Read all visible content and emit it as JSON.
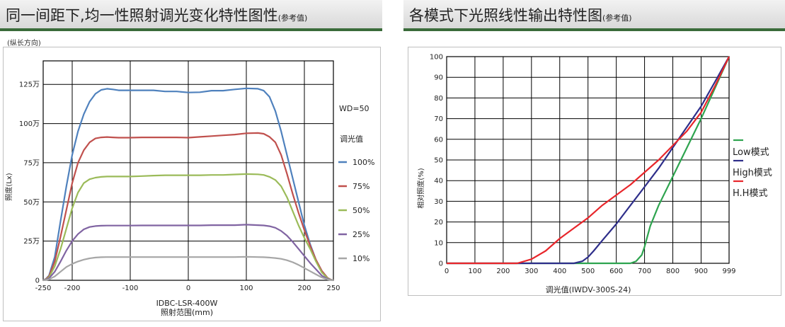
{
  "left_header": {
    "title": "同一间距下,均一性照射调光变化特性图性",
    "title_small": "(参考值)"
  },
  "right_header": {
    "title": "各模式下光照线性输出特性图",
    "title_small": "(参考值)"
  },
  "left_note": "(纵长方向)",
  "colors": {
    "header_rule": "#3a6b3a",
    "s100": "#4f81bd",
    "s75": "#c0504d",
    "s50": "#9bbb59",
    "s25": "#8064a2",
    "s10": "#a6a6a6",
    "low": "#2ea44f",
    "high": "#2e2e8a",
    "hh": "#e8262b"
  },
  "chart_data": [
    {
      "type": "line",
      "xlabel": "IDBC-LSR-400W",
      "xlabel2": "照射范围(mm)",
      "ylabel": "照度(Lx)",
      "xlim": [
        -250,
        250
      ],
      "ylim": [
        0,
        1400000
      ],
      "grid": true,
      "x_ticks": [
        {
          "v": -250,
          "label": "-250"
        },
        {
          "v": -200,
          "label": "-200"
        },
        {
          "v": -100,
          "label": "-100"
        },
        {
          "v": 0,
          "label": "0"
        },
        {
          "v": 100,
          "label": "100"
        },
        {
          "v": 200,
          "label": "200"
        },
        {
          "v": 250,
          "label": "250"
        }
      ],
      "y_ticks": [
        {
          "v": 0,
          "label": "0"
        },
        {
          "v": 250000,
          "label": "25万"
        },
        {
          "v": 500000,
          "label": "50万"
        },
        {
          "v": 750000,
          "label": "75万"
        },
        {
          "v": 1000000,
          "label": "100万"
        },
        {
          "v": 1250000,
          "label": "125万"
        }
      ],
      "annotation": "WD=50",
      "legend_title": "调光值",
      "legend_position": "right",
      "x": [
        -250,
        -245,
        -240,
        -230,
        -220,
        -210,
        -200,
        -190,
        -180,
        -170,
        -160,
        -150,
        -140,
        -130,
        -120,
        -100,
        -80,
        -60,
        -40,
        -20,
        0,
        20,
        40,
        60,
        80,
        100,
        120,
        130,
        140,
        150,
        160,
        170,
        180,
        190,
        200,
        210,
        220,
        230,
        240,
        245,
        250
      ],
      "series": [
        {
          "name": "100%",
          "color_key": "s100",
          "values": [
            0,
            10000,
            30000,
            150000,
            380000,
            600000,
            800000,
            950000,
            1060000,
            1140000,
            1190000,
            1215000,
            1222000,
            1218000,
            1212000,
            1212000,
            1212000,
            1212000,
            1205000,
            1205000,
            1198000,
            1200000,
            1210000,
            1210000,
            1218000,
            1225000,
            1222000,
            1210000,
            1170000,
            1080000,
            950000,
            800000,
            650000,
            500000,
            350000,
            230000,
            130000,
            60000,
            15000,
            5000,
            0
          ]
        },
        {
          "name": "75%",
          "color_key": "s75",
          "values": [
            0,
            8000,
            25000,
            120000,
            280000,
            450000,
            620000,
            750000,
            830000,
            880000,
            905000,
            912000,
            914000,
            912000,
            910000,
            910000,
            912000,
            912000,
            912000,
            912000,
            910000,
            915000,
            920000,
            925000,
            930000,
            938000,
            940000,
            935000,
            915000,
            880000,
            800000,
            680000,
            550000,
            430000,
            320000,
            220000,
            130000,
            60000,
            15000,
            5000,
            0
          ]
        },
        {
          "name": "50%",
          "color_key": "s50",
          "values": [
            0,
            6000,
            18000,
            90000,
            200000,
            330000,
            460000,
            560000,
            620000,
            645000,
            655000,
            660000,
            662000,
            662000,
            662000,
            662000,
            665000,
            668000,
            670000,
            670000,
            670000,
            670000,
            672000,
            672000,
            675000,
            678000,
            676000,
            672000,
            660000,
            640000,
            600000,
            530000,
            440000,
            350000,
            270000,
            200000,
            120000,
            50000,
            12000,
            4000,
            0
          ]
        },
        {
          "name": "25%",
          "color_key": "s25",
          "values": [
            0,
            4000,
            12000,
            55000,
            120000,
            190000,
            250000,
            295000,
            325000,
            340000,
            346000,
            348000,
            349000,
            349000,
            349000,
            349000,
            350000,
            350000,
            350000,
            350000,
            350000,
            350000,
            352000,
            352000,
            352000,
            355000,
            352000,
            350000,
            345000,
            335000,
            315000,
            285000,
            245000,
            200000,
            155000,
            110000,
            70000,
            30000,
            8000,
            3000,
            0
          ]
        },
        {
          "name": "10%",
          "color_key": "s10",
          "values": [
            0,
            2000,
            6000,
            25000,
            55000,
            85000,
            105000,
            120000,
            132000,
            140000,
            145000,
            147000,
            148000,
            148000,
            148000,
            148000,
            148000,
            148000,
            148000,
            148000,
            148000,
            148000,
            148000,
            148000,
            148000,
            150000,
            148000,
            147000,
            145000,
            142000,
            137000,
            128000,
            115000,
            98000,
            78000,
            58000,
            38000,
            18000,
            5000,
            2000,
            0
          ]
        }
      ]
    },
    {
      "type": "line",
      "xlabel": "调光值(IWDV-300S-24)",
      "ylabel": "相对照度(%)",
      "xlim": [
        0,
        999
      ],
      "ylim": [
        0,
        100
      ],
      "grid": true,
      "x_ticks": [
        {
          "v": 0,
          "label": "0"
        },
        {
          "v": 100,
          "label": "100"
        },
        {
          "v": 200,
          "label": "200"
        },
        {
          "v": 300,
          "label": "300"
        },
        {
          "v": 400,
          "label": "400"
        },
        {
          "v": 500,
          "label": "500"
        },
        {
          "v": 600,
          "label": "600"
        },
        {
          "v": 700,
          "label": "700"
        },
        {
          "v": 800,
          "label": "800"
        },
        {
          "v": 900,
          "label": "900"
        },
        {
          "v": 999,
          "label": "999"
        }
      ],
      "y_ticks": [
        {
          "v": 0,
          "label": "0"
        },
        {
          "v": 10,
          "label": "10"
        },
        {
          "v": 20,
          "label": "20"
        },
        {
          "v": 30,
          "label": "30"
        },
        {
          "v": 40,
          "label": "40"
        },
        {
          "v": 50,
          "label": "50"
        },
        {
          "v": 60,
          "label": "60"
        },
        {
          "v": 70,
          "label": "70"
        },
        {
          "v": 80,
          "label": "80"
        },
        {
          "v": 90,
          "label": "90"
        },
        {
          "v": 100,
          "label": "100"
        }
      ],
      "legend_position": "right",
      "series": [
        {
          "name": "Low模式",
          "color_key": "low",
          "x": [
            0,
            650,
            670,
            690,
            700,
            720,
            750,
            800,
            850,
            900,
            950,
            999
          ],
          "values": [
            0,
            0,
            1,
            4,
            8,
            18,
            28,
            42,
            56,
            70,
            85,
            100
          ]
        },
        {
          "name": "High模式",
          "color_key": "high",
          "x": [
            0,
            450,
            480,
            500,
            520,
            550,
            600,
            650,
            700,
            750,
            800,
            850,
            900,
            950,
            999
          ],
          "values": [
            0,
            0,
            1,
            3,
            6,
            11,
            19,
            28,
            37,
            46,
            56,
            66,
            76,
            88,
            100
          ]
        },
        {
          "name": "H.H模式",
          "color_key": "hh",
          "x": [
            0,
            250,
            300,
            350,
            400,
            450,
            500,
            550,
            600,
            650,
            700,
            750,
            800,
            850,
            900,
            950,
            999
          ],
          "values": [
            0,
            0,
            2,
            6,
            12,
            17,
            22,
            28,
            33,
            38,
            44,
            50,
            57,
            64,
            73,
            86,
            100
          ]
        }
      ]
    }
  ]
}
